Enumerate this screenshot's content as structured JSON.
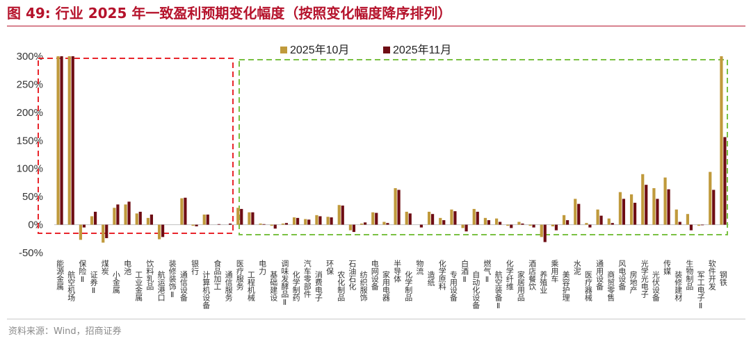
{
  "header": {
    "title": "图 49:  行业 2025 年一致盈利预期变化幅度（按照变化幅度降序排列）"
  },
  "footer": {
    "source": "资料来源：Wind，招商证券"
  },
  "chart_data": {
    "type": "bar",
    "title": "",
    "xlabel": "",
    "ylabel": "",
    "ylim": [
      -50,
      300
    ],
    "yticks": [
      "300%",
      "250%",
      "200%",
      "150%",
      "100%",
      "50%",
      "0%",
      "-50%"
    ],
    "ytick_values": [
      300,
      250,
      200,
      150,
      100,
      50,
      0,
      -50
    ],
    "grid": false,
    "legend_position": "top-center",
    "colors": {
      "oct": "#c09a3c",
      "nov": "#6e0d14",
      "red_box": "#e8242b",
      "green_box": "#7ac142"
    },
    "categories": [
      "能源金属",
      "航空机场",
      "保险Ⅱ",
      "证券Ⅱ",
      "煤炭",
      "小金属",
      "电池",
      "工业金属",
      "饮料乳品",
      "航运港口",
      "装修装饰Ⅱ",
      "通信设备",
      "银行",
      "计算机设备",
      "食品加工",
      "通信服务",
      "医疗服务",
      "工程机械",
      "电力",
      "基础建设",
      "调味发酵品Ⅱ",
      "化学制药",
      "汽车零部件",
      "消费电子",
      "环保",
      "农化制品",
      "石油石化",
      "纺织服饰",
      "电网设备",
      "家用电器",
      "半导体",
      "化学制品",
      "物流",
      "造纸",
      "化学原料",
      "专用设备",
      "白酒Ⅱ",
      "自动化设备",
      "燃气Ⅱ",
      "航空装备Ⅱ",
      "化学纤维",
      "家居用品",
      "酒店餐饮",
      "养殖业",
      "乘用车",
      "美容护理",
      "水泥",
      "医疗器械",
      "通用设备",
      "商贸零售",
      "风电设备",
      "房地产",
      "光学光电子",
      "光伏设备",
      "传媒",
      "装修建材",
      "生物制品",
      "军工电子Ⅱ",
      "软件开发",
      "钢铁"
    ],
    "series": [
      {
        "name": "2025年10月",
        "values": [
          300,
          300,
          -27,
          15,
          -32,
          30,
          36,
          20,
          12,
          -26,
          0,
          47,
          -2,
          18,
          0,
          0,
          30,
          22,
          2,
          -2,
          2,
          13,
          10,
          17,
          14,
          35,
          -10,
          2,
          22,
          5,
          65,
          23,
          0,
          23,
          12,
          27,
          -6,
          28,
          12,
          11,
          -2,
          5,
          -2,
          -22,
          -3,
          17,
          46,
          3,
          27,
          11,
          58,
          54,
          90,
          65,
          84,
          27,
          19,
          -2,
          94,
          300
        ]
      },
      {
        "name": "2025年11月",
        "values": [
          300,
          300,
          -5,
          23,
          -24,
          36,
          41,
          23,
          18,
          -22,
          0,
          48,
          -3,
          18,
          1,
          2,
          28,
          22,
          1,
          -7,
          3,
          12,
          9,
          15,
          13,
          34,
          -13,
          4,
          21,
          3,
          62,
          20,
          -5,
          19,
          8,
          24,
          -12,
          23,
          8,
          5,
          -6,
          2,
          -5,
          -31,
          -10,
          8,
          37,
          -5,
          16,
          3,
          46,
          39,
          71,
          46,
          63,
          5,
          -10,
          -1,
          62,
          156
        ]
      }
    ]
  }
}
